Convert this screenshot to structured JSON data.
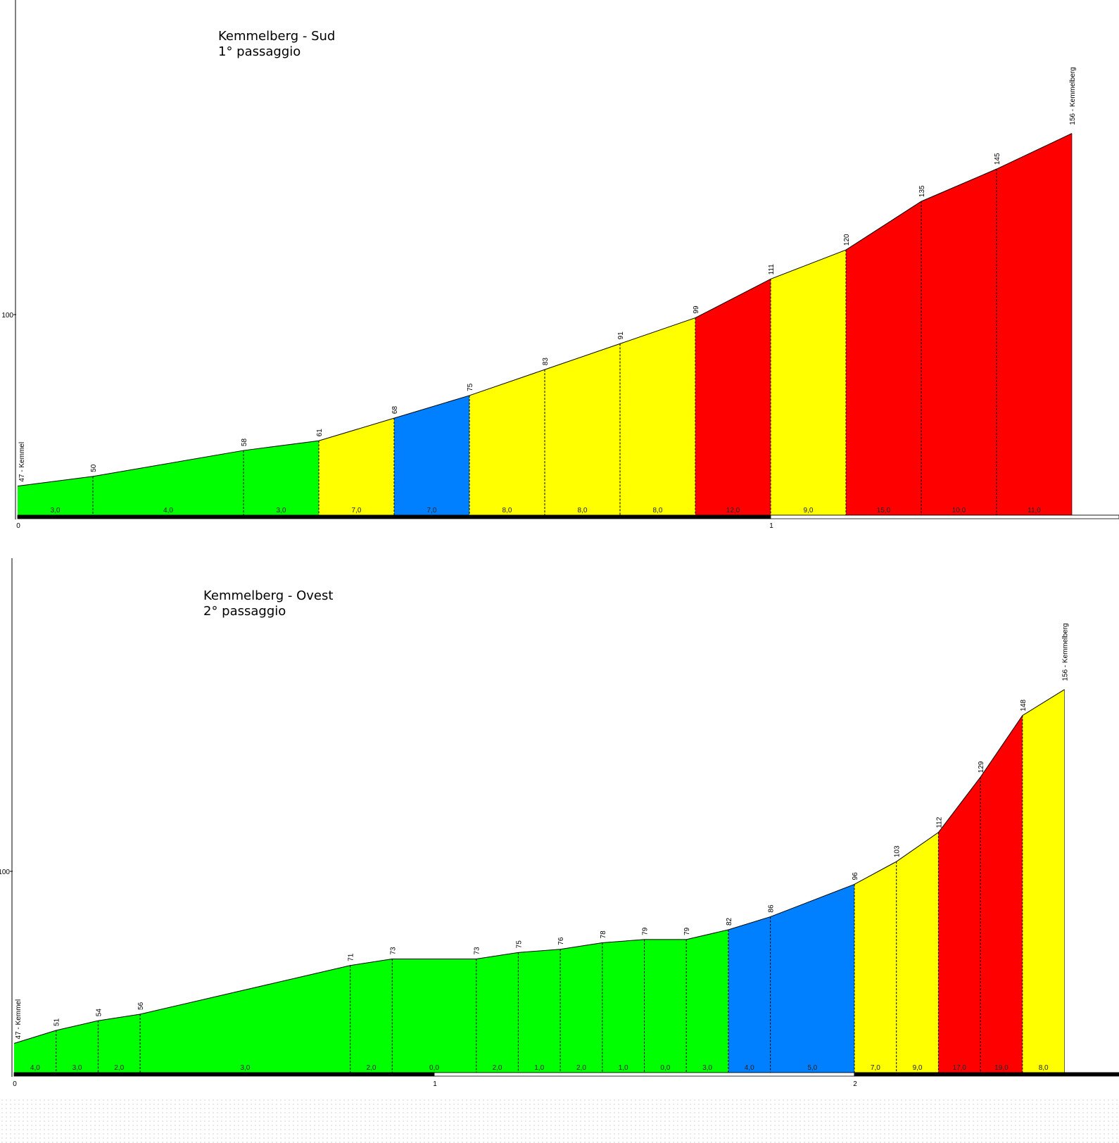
{
  "chart_data": [
    {
      "type": "area",
      "title": "Kemmelberg - Sud",
      "subtitle": "1° passaggio",
      "xlabel": "",
      "ylabel": "",
      "y_ticks": [
        "100"
      ],
      "x_ticks": [
        "0",
        "1"
      ],
      "xlim": [
        0,
        1.465
      ],
      "ylim": [
        38,
        180
      ],
      "grid": false,
      "start_label": "47 - Kemmel",
      "end_label": "156 - Kemmelberg",
      "x": [
        0,
        0.1,
        0.3,
        0.4,
        0.5,
        0.6,
        0.7,
        0.8,
        0.9,
        1.0,
        1.1,
        1.2,
        1.3,
        1.4
      ],
      "elevation": [
        47,
        50,
        58,
        61,
        68,
        75,
        83,
        91,
        99,
        111,
        120,
        135,
        145,
        156
      ],
      "point_labels": [
        "",
        "50",
        "58",
        "61",
        "68",
        "75",
        "83",
        "91",
        "99",
        "111",
        "120",
        "135",
        "145",
        ""
      ],
      "segment_gradients": [
        "3,0",
        "4,0",
        "3,0",
        "7,0",
        "7,0",
        "8,0",
        "8,0",
        "8,0",
        "12,0",
        "9,0",
        "15,0",
        "10,0",
        "11,0"
      ],
      "segment_colors": [
        "#00ff00",
        "#00ff00",
        "#00ff00",
        "#ffff00",
        "#0080ff",
        "#ffff00",
        "#ffff00",
        "#ffff00",
        "#ff0000",
        "#ffff00",
        "#ff0000",
        "#ff0000",
        "#ff0000"
      ]
    },
    {
      "type": "area",
      "title": "Kemmelberg - Ovest",
      "subtitle": "2° passaggio",
      "xlabel": "",
      "ylabel": "",
      "y_ticks": [
        "100"
      ],
      "x_ticks": [
        "0",
        "1",
        "2"
      ],
      "xlim": [
        0,
        2.62
      ],
      "ylim": [
        38,
        175
      ],
      "grid": false,
      "start_label": "47 - Kemmel",
      "end_label": "156 - Kemmelberg",
      "x": [
        0,
        0.1,
        0.2,
        0.3,
        0.8,
        0.9,
        1.1,
        1.2,
        1.3,
        1.4,
        1.5,
        1.6,
        1.7,
        1.8,
        2.0,
        2.1,
        2.2,
        2.3,
        2.4,
        2.5
      ],
      "elevation": [
        47,
        51,
        54,
        56,
        71,
        73,
        73,
        75,
        76,
        78,
        79,
        79,
        82,
        86,
        96,
        103,
        112,
        129,
        148,
        156
      ],
      "point_labels": [
        "",
        "51",
        "54",
        "56",
        "71",
        "73",
        "73",
        "75",
        "76",
        "78",
        "79",
        "79",
        "82",
        "86",
        "96",
        "103",
        "112",
        "129",
        "148",
        ""
      ],
      "segment_gradients": [
        "4,0",
        "3,0",
        "2,0",
        "3,0",
        "2,0",
        "0,0",
        "2,0",
        "1,0",
        "2,0",
        "1,0",
        "0,0",
        "3,0",
        "4,0",
        "5,0",
        "7,0",
        "9,0",
        "17,0",
        "19,0",
        "8,0"
      ],
      "segment_colors": [
        "#00ff00",
        "#00ff00",
        "#00ff00",
        "#00ff00",
        "#00ff00",
        "#00ff00",
        "#00ff00",
        "#00ff00",
        "#00ff00",
        "#00ff00",
        "#00ff00",
        "#00ff00",
        "#0080ff",
        "#0080ff",
        "#ffff00",
        "#ffff00",
        "#ff0000",
        "#ff0000",
        "#ffff00"
      ]
    }
  ]
}
